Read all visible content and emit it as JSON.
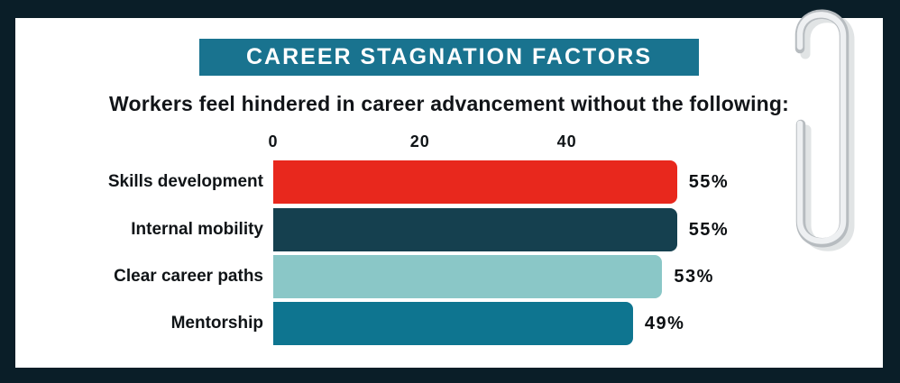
{
  "frame": {
    "background_color": "#0a1e28",
    "card_color": "#ffffff"
  },
  "header": {
    "banner_color": "#19738f",
    "title": "CAREER STAGNATION FACTORS",
    "subtitle": "Workers feel hindered in career advancement without the following:"
  },
  "chart_data": {
    "type": "bar",
    "orientation": "horizontal",
    "title": "CAREER STAGNATION FACTORS",
    "subtitle": "Workers feel hindered in career advancement without the following:",
    "categories": [
      "Skills development",
      "Internal mobility",
      "Clear career paths",
      "Mentorship"
    ],
    "values": [
      55,
      55,
      53,
      49
    ],
    "value_labels": [
      "55%",
      "55%",
      "53%",
      "49%"
    ],
    "bar_colors": [
      "#e8281d",
      "#15404f",
      "#8ac7c7",
      "#0e7590"
    ],
    "x_ticks": [
      0,
      20,
      40
    ],
    "x_tick_labels": [
      "0",
      "20",
      "40"
    ],
    "xlim": [
      0,
      59
    ],
    "grid": false,
    "legend": "none",
    "value_label_position": "right-of-bar"
  },
  "decor": {
    "paperclip_icon": "paperclip",
    "clip_base_color": "#b7bcc0",
    "clip_highlight_color": "#eef0f2"
  }
}
